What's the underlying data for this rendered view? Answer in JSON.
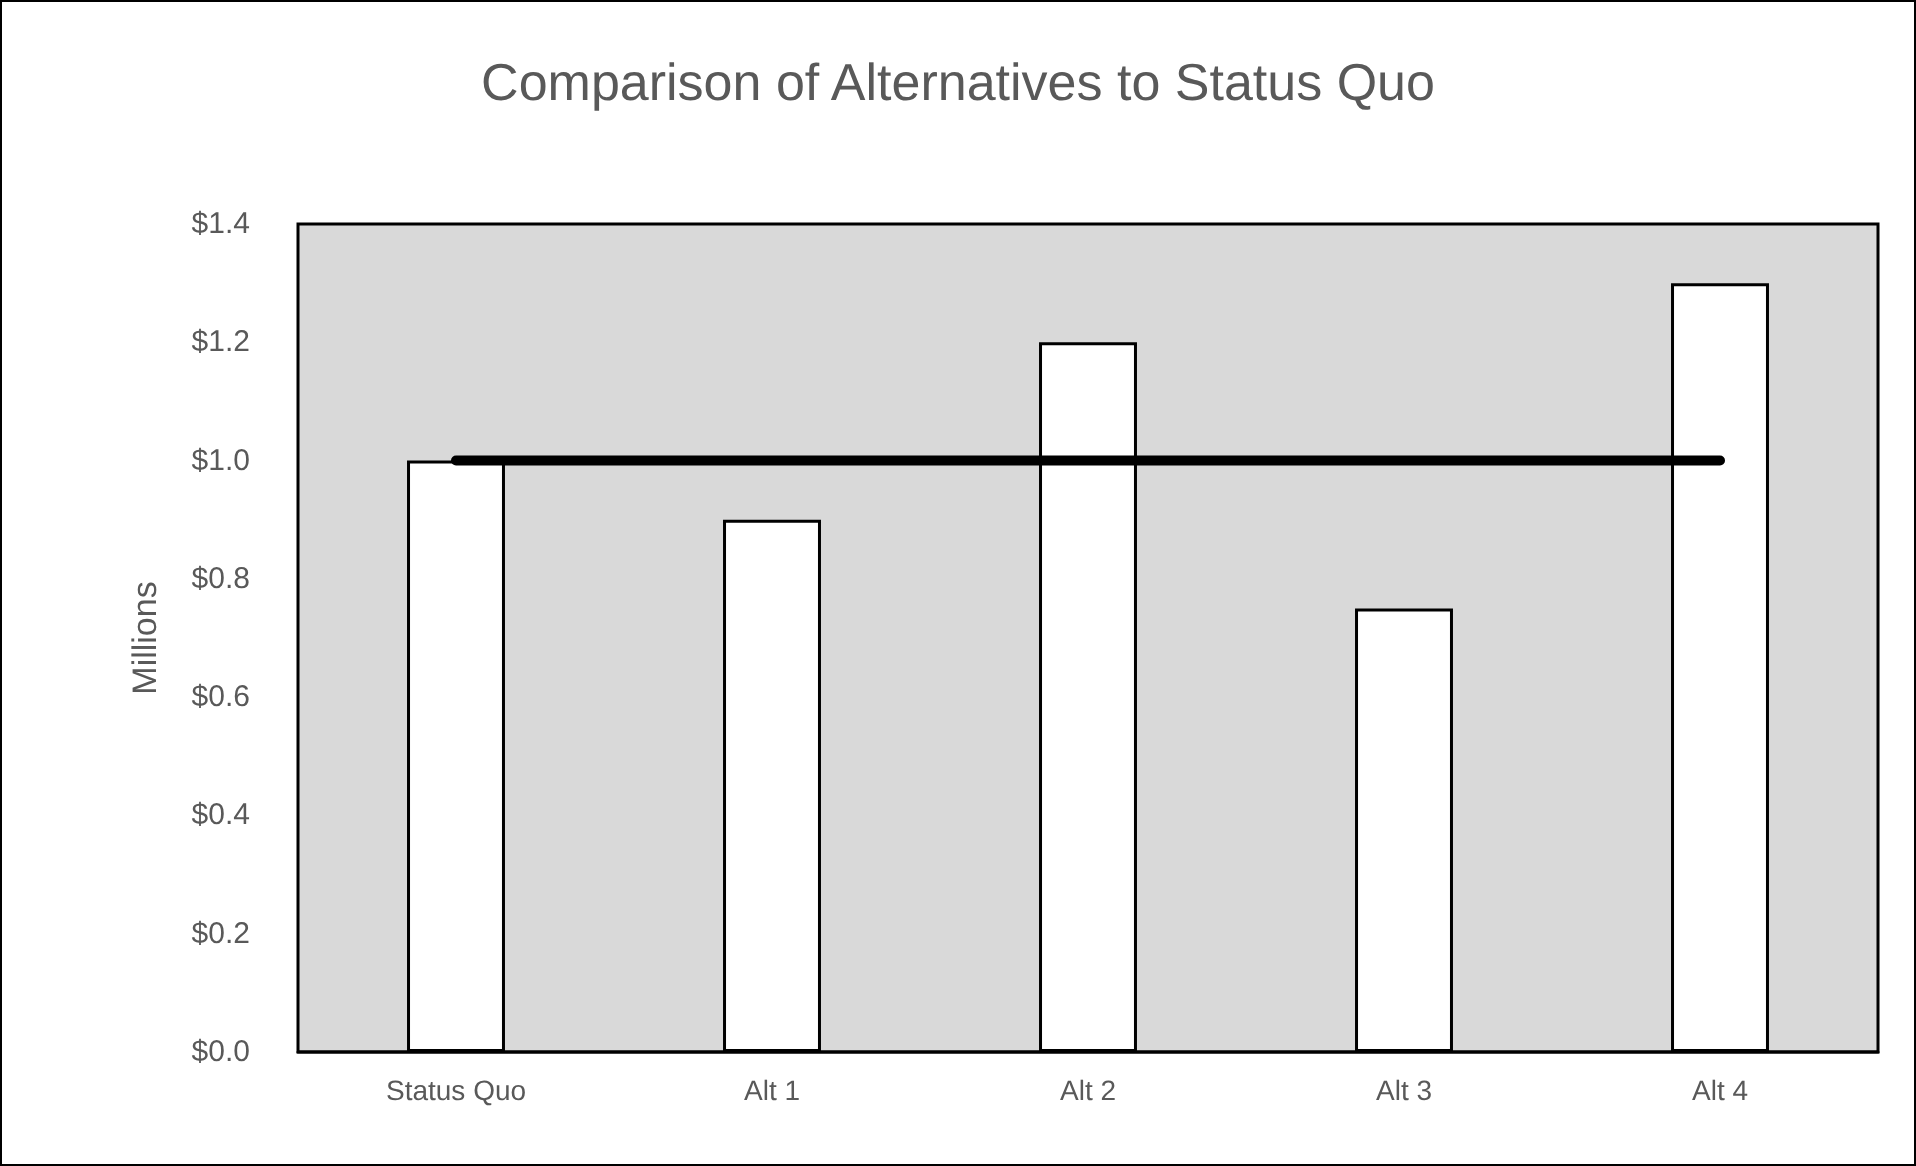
{
  "chart_data": {
    "type": "bar",
    "title": "Comparison of Alternatives to Status Quo",
    "ylabel": "Millions",
    "categories": [
      "Status Quo",
      "Alt 1",
      "Alt 2",
      "Alt 3",
      "Alt 4"
    ],
    "series": [
      {
        "color": "#ffffff",
        "values": [
          1.0,
          0.9,
          1.2,
          0.75,
          1.3
        ]
      },
      {
        "type": "line",
        "color": "#000000",
        "values": [
          1.0,
          1.0,
          1.0,
          1.0,
          1.0
        ]
      }
    ],
    "ylim": [
      0,
      1.4
    ],
    "yticks": [
      {
        "value": 0,
        "label": "$0.0"
      },
      {
        "value": 0.2,
        "label": "$0.2"
      },
      {
        "value": 0.4,
        "label": "$0.4"
      },
      {
        "value": 0.6,
        "label": "$0.6"
      },
      {
        "value": 0.8,
        "label": "$0.8"
      },
      {
        "value": 1.0,
        "label": "$1.0"
      },
      {
        "value": 1.2,
        "label": "$1.2"
      },
      {
        "value": 1.4,
        "label": "$1.4"
      }
    ],
    "grid": false,
    "marker": "none",
    "line_style": "solid"
  }
}
